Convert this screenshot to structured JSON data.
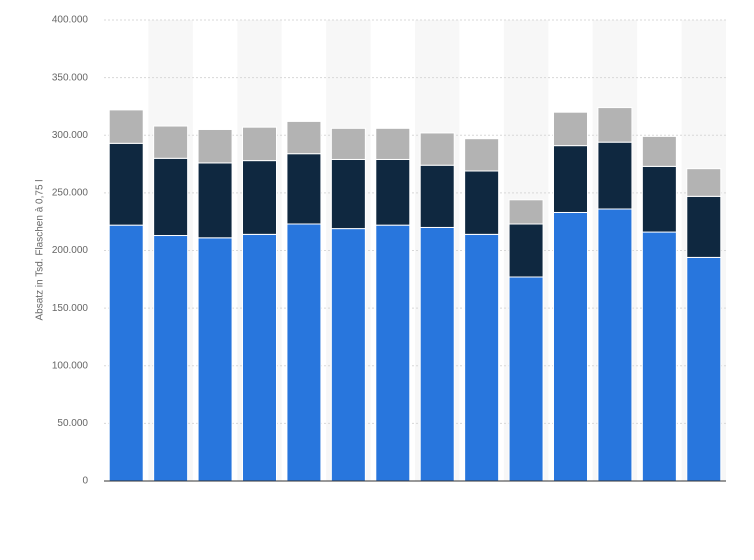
{
  "chart_data": {
    "type": "stacked_bar",
    "y_label": "Absatz in Tsd. Flaschen à 0,75 l",
    "categories": [
      null,
      null,
      null,
      null,
      null,
      null,
      null,
      null,
      null,
      null,
      null,
      null,
      null,
      null
    ],
    "series": [
      {
        "color": "#2876dd",
        "values": [
          222000,
          213000,
          211000,
          214000,
          223000,
          219000,
          222000,
          220000,
          214000,
          177000,
          233000,
          236000,
          216000,
          194000
        ]
      },
      {
        "color": "#0f2840",
        "values": [
          71000,
          67000,
          65000,
          64000,
          61000,
          60000,
          57000,
          54000,
          55000,
          46000,
          58000,
          58000,
          57000,
          53000
        ]
      },
      {
        "color": "#b3b3b3",
        "values": [
          29000,
          28000,
          29000,
          29000,
          28000,
          27000,
          27000,
          28000,
          28000,
          21000,
          29000,
          30000,
          26000,
          24000
        ]
      }
    ],
    "ylim": [
      0,
      400000
    ],
    "yticks": [
      0,
      {
        "value": 50000,
        "label": "50.000"
      },
      {
        "value": 100000,
        "label": "100.000"
      },
      {
        "value": 150000,
        "label": "150.000"
      },
      {
        "value": 200000,
        "label": "200.000"
      },
      {
        "value": 250000,
        "label": "250.000"
      },
      {
        "value": 300000,
        "label": "300.000"
      },
      {
        "value": 350000,
        "label": "350.000"
      },
      {
        "value": 400000,
        "label": "400.000"
      }
    ],
    "grid": true
  }
}
